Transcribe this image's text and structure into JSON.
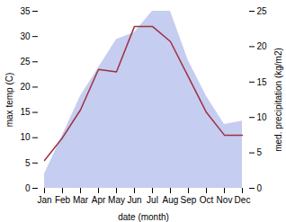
{
  "chart_data": {
    "type": "line",
    "categories": [
      "Jan",
      "Feb",
      "Mar",
      "Apr",
      "May",
      "Jun",
      "Jul",
      "Aug",
      "Sep",
      "Oct",
      "Nov",
      "Dec"
    ],
    "series": [
      {
        "type": "area",
        "axis": "y2",
        "color": "#c5cdf0",
        "values": [
          2.0,
          7.5,
          13.0,
          17.0,
          21.0,
          22.0,
          25.0,
          25.0,
          18.0,
          13.0,
          9.0,
          9.5
        ]
      },
      {
        "type": "line",
        "color": "#a03040",
        "values": [
          5.5,
          10.0,
          15.5,
          23.5,
          23.0,
          32.0,
          32.0,
          29.0,
          22.0,
          15.0,
          10.5,
          10.5
        ]
      }
    ],
    "xlabel": "date (month)",
    "ylabel": "max temp (C)",
    "y2label": "med. precipitation (kg/m2)",
    "ylim": [
      0,
      35
    ],
    "yticks": [
      0,
      5,
      10,
      15,
      20,
      25,
      30,
      35
    ],
    "y2lim": [
      0,
      25
    ],
    "y2ticks": [
      0,
      5,
      10,
      15,
      20,
      25
    ],
    "grid": false
  }
}
